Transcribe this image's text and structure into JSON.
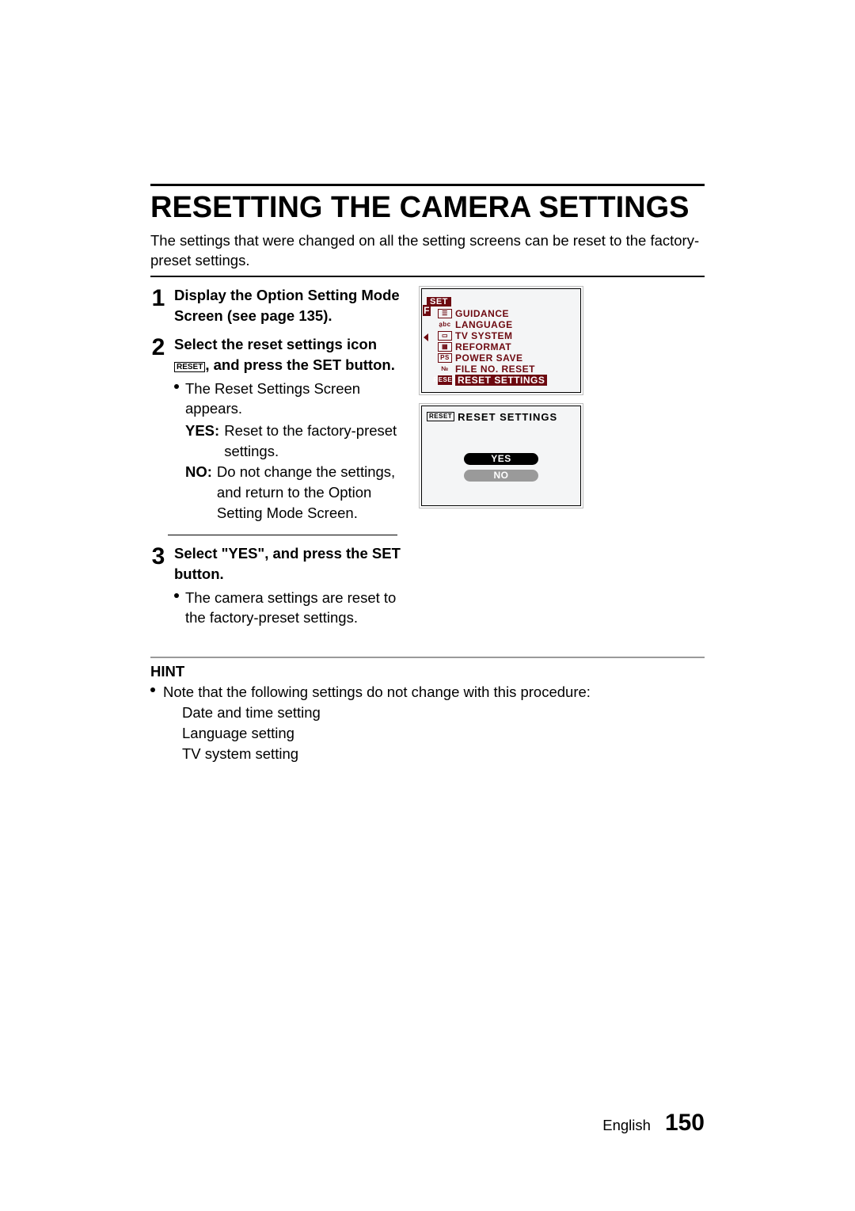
{
  "title": "RESETTING THE CAMERA SETTINGS",
  "intro": "The settings that were changed on all the setting screens can be reset to the factory-preset settings.",
  "reset_icon_text": "RESET",
  "steps": {
    "s1": {
      "head": "Display the Option Setting Mode Screen (see page 135)."
    },
    "s2": {
      "head_a": "Select the reset settings icon ",
      "head_b": ", and press the SET button.",
      "b1": "The Reset Settings Screen appears.",
      "yes_k": "YES",
      "yes_v": "Reset to the factory-preset settings.",
      "no_k": "NO",
      "no_v": "Do not change the settings, and return to the Option Setting Mode Screen."
    },
    "s3": {
      "head": "Select \"YES\", and press the SET button.",
      "b1": "The camera settings are reset to the factory-preset settings."
    }
  },
  "lcd1": {
    "set_tag": "SET",
    "f_tab": "F",
    "items": [
      {
        "icon": "☰",
        "iconClass": "",
        "label": "GUIDANCE"
      },
      {
        "icon": "a̱bc",
        "iconClass": "noborder",
        "label": "LANGUAGE"
      },
      {
        "icon": "▭",
        "iconClass": "",
        "label": "TV SYSTEM"
      },
      {
        "icon": "▦",
        "iconClass": "",
        "label": "REFORMAT"
      },
      {
        "icon": "PS",
        "iconClass": "",
        "label": "POWER SAVE"
      },
      {
        "icon": "№",
        "iconClass": "noborder",
        "label": "FILE NO. RESET"
      },
      {
        "icon": "RESET",
        "iconClass": "",
        "label": "RESET SETTINGS",
        "selected": true
      }
    ]
  },
  "lcd2": {
    "icon": "RESET",
    "title": "RESET SETTINGS",
    "yes": "YES",
    "no": "NO"
  },
  "hint": {
    "title": "HINT",
    "line": "Note that the following settings do not change with this procedure:",
    "sub": [
      "Date and time setting",
      "Language setting",
      "TV system setting"
    ]
  },
  "footer": {
    "lang": "English",
    "page": "150"
  },
  "colors": {
    "accent": "#6d0910",
    "grey_rule": "#9a9a9a",
    "opt_no_bg": "#9a9a9a"
  }
}
